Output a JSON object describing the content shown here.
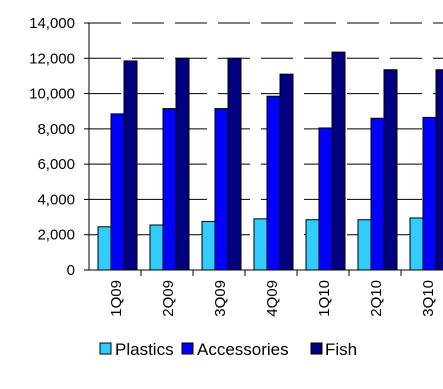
{
  "chart_data": {
    "type": "bar",
    "categories": [
      "1Q09",
      "2Q09",
      "3Q09",
      "4Q09",
      "1Q10",
      "2Q10",
      "3Q10"
    ],
    "series": [
      {
        "name": "Plastics",
        "color": "#33CCFF",
        "values": [
          2450,
          2550,
          2750,
          2900,
          2850,
          2850,
          2950
        ]
      },
      {
        "name": "Accessories",
        "color": "#0000FF",
        "values": [
          8850,
          9150,
          9150,
          9850,
          8050,
          8600,
          8650
        ]
      },
      {
        "name": "Fish",
        "color": "#000080",
        "values": [
          11850,
          12000,
          12000,
          11100,
          12350,
          11350,
          11350
        ]
      }
    ],
    "y_ticks": [
      "0",
      "2,000",
      "4,000",
      "6,000",
      "8,000",
      "10,000",
      "12,000",
      "14,000"
    ],
    "ylim": [
      0,
      14000
    ],
    "grid": true,
    "gridline_style": "dashed horizontal",
    "legend_position": "bottom"
  }
}
